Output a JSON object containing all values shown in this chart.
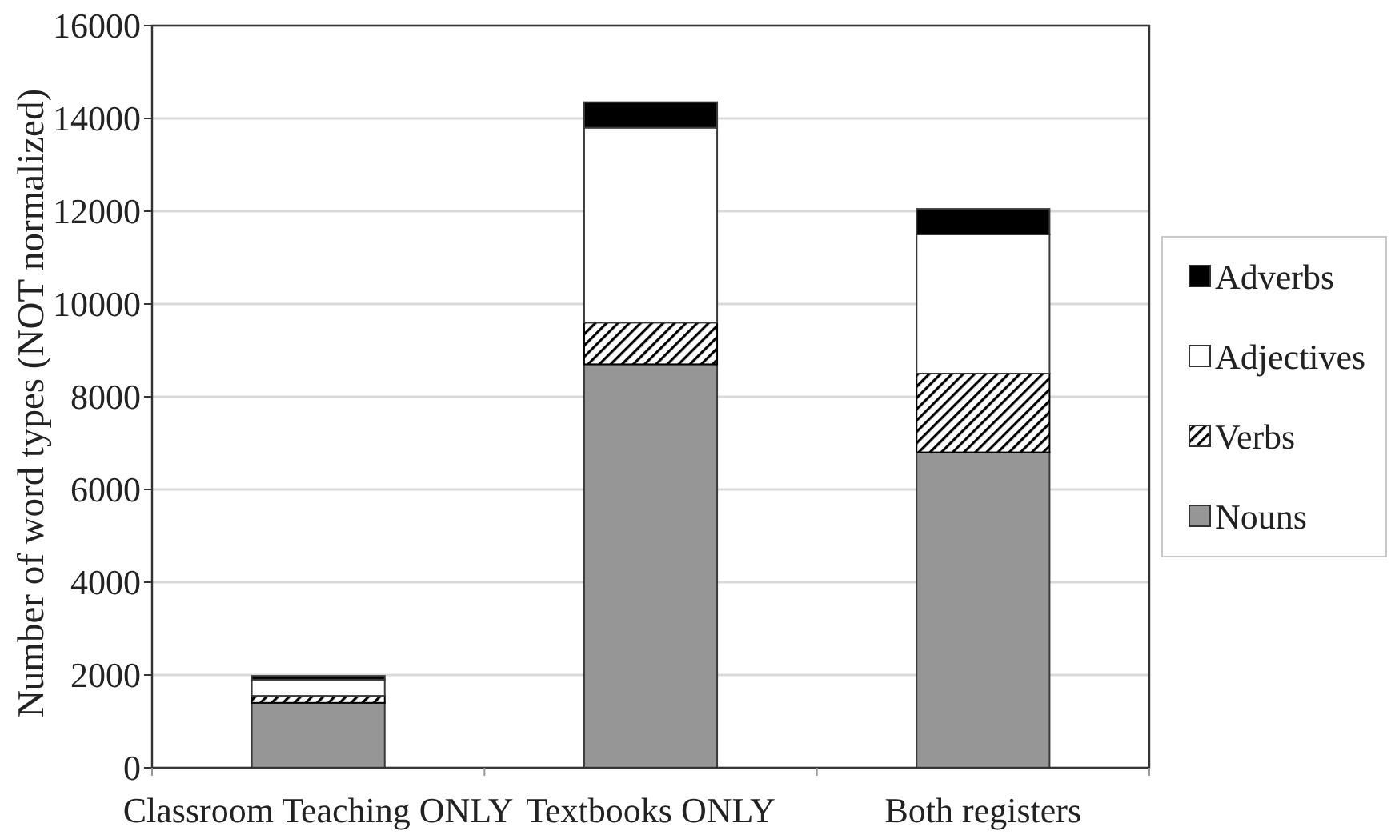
{
  "chart_data": {
    "type": "bar",
    "ylabel": "Number of word types (NOT normalized)",
    "categories": [
      "Classroom Teaching ONLY",
      "Textbooks ONLY",
      "Both registers"
    ],
    "stacked": true,
    "series": [
      {
        "name": "Nouns",
        "color": "#969696",
        "values": [
          1400,
          8700,
          6800
        ]
      },
      {
        "name": "Verbs",
        "color": "#000000",
        "values": [
          150,
          900,
          1700
        ]
      },
      {
        "name": "Adjectives",
        "color": "#ffffff",
        "values": [
          350,
          4200,
          3000
        ]
      },
      {
        "name": "Adverbs",
        "color": "#000000",
        "values": [
          80,
          550,
          550
        ]
      }
    ],
    "ylim": [
      0,
      16000
    ],
    "yticks": [
      0,
      2000,
      4000,
      6000,
      8000,
      10000,
      12000,
      14000,
      16000
    ],
    "grid": "y",
    "legend": "right"
  }
}
